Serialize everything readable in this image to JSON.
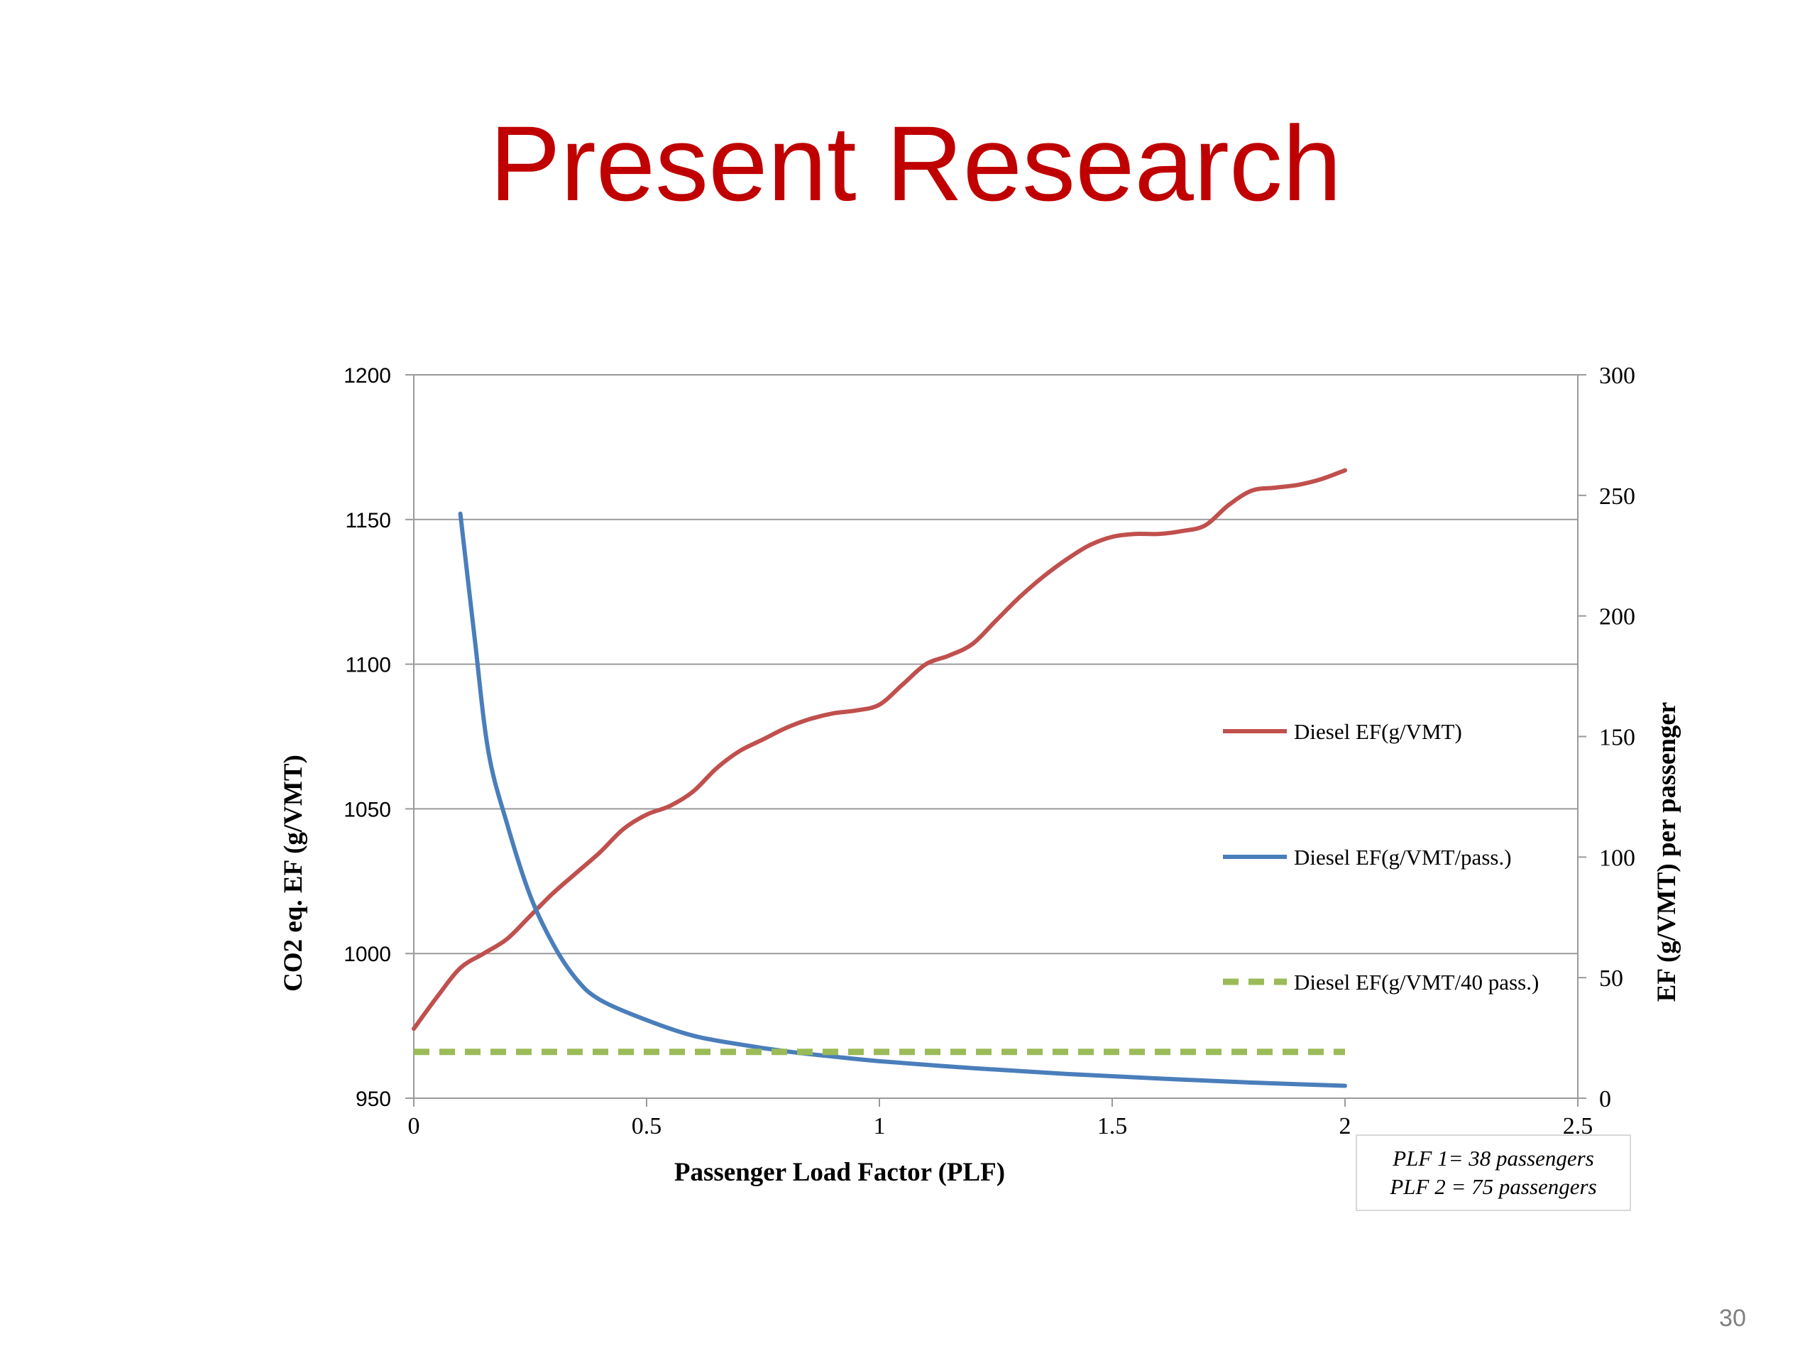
{
  "slide": {
    "title": "Present Research",
    "page_number": "30",
    "note_lines": [
      "PLF 1= 38 passengers",
      "PLF 2 = 75 passengers"
    ]
  },
  "colors": {
    "title": "#c00000",
    "series_red": "#c0504d",
    "series_blue": "#4a7ebb",
    "series_green": "#9bbb59",
    "grid": "#9a9a9a"
  },
  "chart_data": {
    "type": "line",
    "xlabel": "Passenger Load Factor (PLF)",
    "ylabel": "CO2 eq. EF (g/VMT)",
    "y2label": "EF (g/VMT) per passenger",
    "xlim": [
      0,
      2.5
    ],
    "ylim": [
      950,
      1200
    ],
    "y2lim": [
      0,
      300
    ],
    "x_ticks": [
      0,
      0.5,
      1,
      1.5,
      2,
      2.5
    ],
    "x_tick_labels": [
      "0",
      "0.5",
      "1",
      "1.5",
      "2",
      "2.5"
    ],
    "y_ticks": [
      950,
      1000,
      1050,
      1100,
      1150,
      1200
    ],
    "y_tick_labels": [
      "950",
      "1000",
      "1050",
      "1100",
      "1150",
      "1200"
    ],
    "y2_ticks": [
      0,
      50,
      100,
      150,
      200,
      250,
      300
    ],
    "y2_tick_labels": [
      "0",
      "50",
      "100",
      "150",
      "200",
      "250",
      "300"
    ],
    "grid": "horizontal",
    "legend_position": "right",
    "series": [
      {
        "name": "Diesel EF(g/VMT)",
        "axis": "left",
        "style": "solid",
        "color": "#c0504d",
        "points": [
          [
            0,
            974
          ],
          [
            0.05,
            985
          ],
          [
            0.1,
            995
          ],
          [
            0.15,
            1000
          ],
          [
            0.2,
            1005
          ],
          [
            0.25,
            1013
          ],
          [
            0.3,
            1021
          ],
          [
            0.35,
            1028
          ],
          [
            0.4,
            1035
          ],
          [
            0.45,
            1043
          ],
          [
            0.5,
            1048
          ],
          [
            0.55,
            1051
          ],
          [
            0.6,
            1056
          ],
          [
            0.65,
            1064
          ],
          [
            0.7,
            1070
          ],
          [
            0.75,
            1074
          ],
          [
            0.8,
            1078
          ],
          [
            0.85,
            1081
          ],
          [
            0.9,
            1083
          ],
          [
            0.95,
            1084
          ],
          [
            1.0,
            1086
          ],
          [
            1.05,
            1093
          ],
          [
            1.1,
            1100
          ],
          [
            1.15,
            1103
          ],
          [
            1.2,
            1107
          ],
          [
            1.25,
            1115
          ],
          [
            1.3,
            1123
          ],
          [
            1.35,
            1130
          ],
          [
            1.4,
            1136
          ],
          [
            1.45,
            1141
          ],
          [
            1.5,
            1144
          ],
          [
            1.55,
            1145
          ],
          [
            1.6,
            1145
          ],
          [
            1.65,
            1146
          ],
          [
            1.7,
            1148
          ],
          [
            1.75,
            1155
          ],
          [
            1.8,
            1160
          ],
          [
            1.85,
            1161
          ],
          [
            1.9,
            1162
          ],
          [
            1.95,
            1164
          ],
          [
            2.0,
            1167
          ]
        ]
      },
      {
        "name": "Diesel EF(g/VMT/pass.)",
        "axis": "left",
        "style": "solid",
        "color": "#4a7ebb",
        "points": [
          [
            0.1,
            1152
          ],
          [
            0.13,
            1110
          ],
          [
            0.16,
            1070
          ],
          [
            0.2,
            1045
          ],
          [
            0.25,
            1020
          ],
          [
            0.3,
            1003
          ],
          [
            0.35,
            991
          ],
          [
            0.4,
            984
          ],
          [
            0.5,
            977
          ],
          [
            0.6,
            971.6
          ],
          [
            0.7,
            968.6
          ],
          [
            0.8,
            966.2
          ],
          [
            0.9,
            964.4
          ],
          [
            1.0,
            962.8
          ],
          [
            1.2,
            960.4
          ],
          [
            1.4,
            958.4
          ],
          [
            1.6,
            956.8
          ],
          [
            1.8,
            955.4
          ],
          [
            2.0,
            954.3
          ]
        ]
      },
      {
        "name": "Diesel EF(g/VMT/40 pass.)",
        "axis": "left",
        "style": "dashed",
        "color": "#9bbb59",
        "points": [
          [
            0,
            966
          ],
          [
            2.0,
            966
          ]
        ]
      }
    ]
  }
}
